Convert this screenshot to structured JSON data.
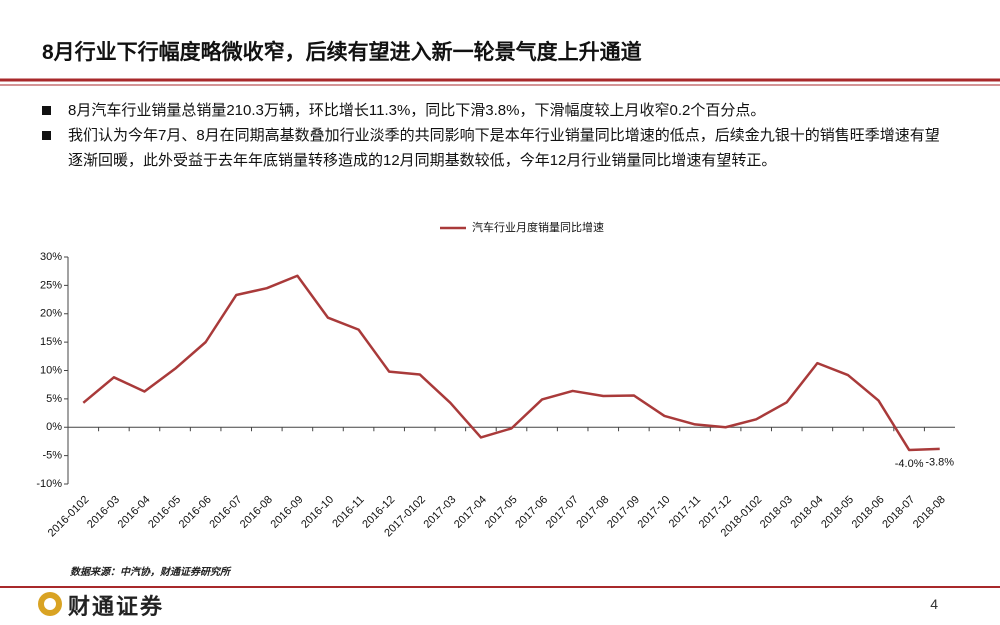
{
  "title": "8月行业下行幅度略微收窄，后续有望进入新一轮景气度上升通道",
  "bullets": [
    "8月汽车行业销量总销量210.3万辆，环比增长11.3%，同比下滑3.8%，下滑幅度较上月收窄0.2个百分点。",
    "我们认为今年7月、8月在同期高基数叠加行业淡季的共同影响下是本年行业销量同比增速的低点，后续金九银十的销售旺季增速有望逐渐回暖，此外受益于去年年底销量转移造成的12月同期基数较低，今年12月行业销量同比增速有望转正。"
  ],
  "chart_data": {
    "type": "line",
    "categories": [
      "2016-0102",
      "2016-03",
      "2016-04",
      "2016-05",
      "2016-06",
      "2016-07",
      "2016-08",
      "2016-09",
      "2016-10",
      "2016-11",
      "2016-12",
      "2017-0102",
      "2017-03",
      "2017-04",
      "2017-05",
      "2017-06",
      "2017-07",
      "2017-08",
      "2017-09",
      "2017-10",
      "2017-11",
      "2017-12",
      "2018-0102",
      "2018-03",
      "2018-04",
      "2018-05",
      "2018-06",
      "2018-07",
      "2018-08"
    ],
    "series": [
      {
        "name": "汽车行业月度销量同比增速",
        "color": "#a93a3a",
        "values": [
          4.3,
          8.8,
          6.3,
          10.3,
          15,
          23.3,
          24.5,
          26.7,
          19.3,
          17.2,
          9.8,
          9.3,
          4.3,
          -1.8,
          -0.2,
          4.9,
          6.4,
          5.5,
          5.6,
          2.0,
          0.5,
          0.0,
          1.4,
          4.4,
          11.3,
          9.2,
          4.7,
          -4.0,
          -3.8
        ],
        "value_labels": [
          null,
          null,
          null,
          null,
          null,
          null,
          null,
          null,
          null,
          null,
          null,
          null,
          null,
          null,
          null,
          null,
          null,
          null,
          null,
          null,
          null,
          null,
          null,
          null,
          null,
          null,
          null,
          "-4.0%",
          "-3.8%"
        ]
      }
    ],
    "ylim": [
      -10,
      30
    ],
    "yticks": [
      {
        "value": -10,
        "label": "-10%"
      },
      {
        "value": -5,
        "label": "-5%"
      },
      {
        "value": 0,
        "label": "0%"
      },
      {
        "value": 5,
        "label": "5%"
      },
      {
        "value": 10,
        "label": "10%"
      },
      {
        "value": 15,
        "label": "15%"
      },
      {
        "value": 20,
        "label": "20%"
      },
      {
        "value": 25,
        "label": "25%"
      },
      {
        "value": 30,
        "label": "30%"
      }
    ],
    "grid": false,
    "legend": "top"
  },
  "source": "数据来源：中汽协，财通证券研究所",
  "logo": "财通证券",
  "page_number": "4"
}
